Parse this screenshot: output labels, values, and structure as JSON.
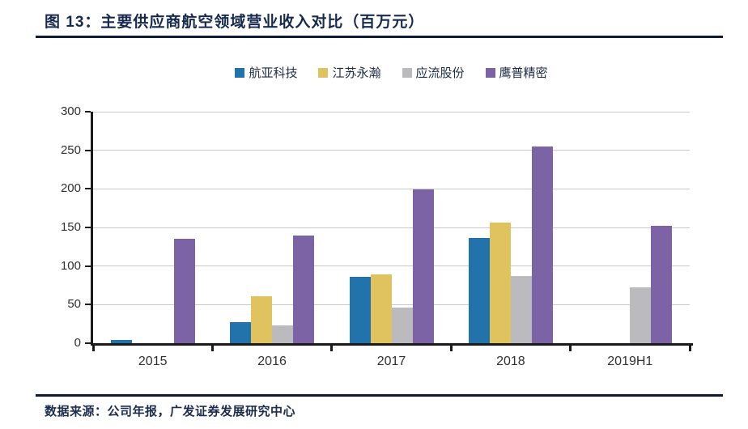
{
  "header": {
    "title": "图 13：主要供应商航空领域营业收入对比（百万元）"
  },
  "footer": {
    "source": "数据来源：公司年报，广发证券发展研究中心"
  },
  "chart_data": {
    "type": "bar",
    "title": "主要供应商航空领域营业收入对比（百万元）",
    "unit": "百万元",
    "categories": [
      "2015",
      "2016",
      "2017",
      "2018",
      "2019H1"
    ],
    "series": [
      {
        "name": "航亚科技",
        "color": "#2272ac",
        "values": [
          4,
          27,
          86,
          136,
          0
        ]
      },
      {
        "name": "江苏永瀚",
        "color": "#e0c35e",
        "values": [
          0,
          61,
          89,
          156,
          0
        ]
      },
      {
        "name": "应流股份",
        "color": "#bbbbbf",
        "values": [
          0,
          23,
          46,
          87,
          72
        ]
      },
      {
        "name": "鹰普精密",
        "color": "#7c63a5",
        "values": [
          135,
          140,
          199,
          255,
          152
        ]
      }
    ],
    "ylim": [
      0,
      300
    ],
    "yticks": [
      0,
      50,
      100,
      150,
      200,
      250,
      300
    ],
    "grid": "horizontal",
    "legend_position": "top-center",
    "xlabel": "",
    "ylabel": ""
  },
  "colors": {
    "title_navy": "#16294e",
    "divider": "#0d1c36",
    "axis": "#1a1a1a",
    "gridline": "#c9c9c9",
    "tick_label": "#303030"
  }
}
